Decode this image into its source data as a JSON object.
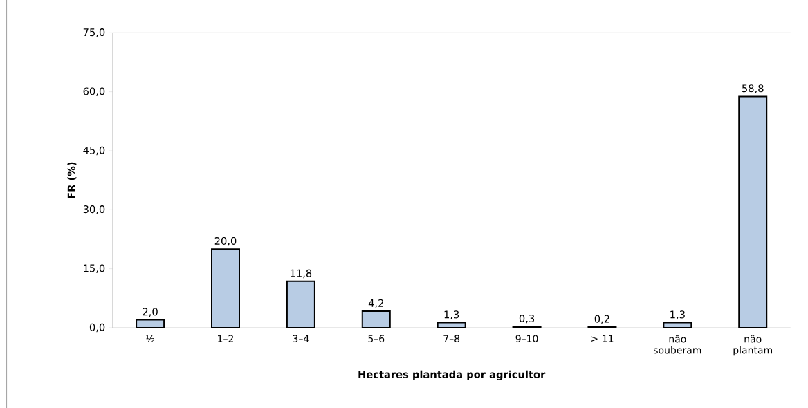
{
  "chart_data": {
    "type": "bar",
    "xlabel": "Hectares plantada por agricultor",
    "ylabel": "FR (%)",
    "categories": [
      "½",
      "1–2",
      "3–4",
      "5–6",
      "7–8",
      "9–10",
      "> 11",
      "não souberam",
      "não plantam"
    ],
    "values": [
      2.0,
      20.0,
      11.8,
      4.2,
      1.3,
      0.3,
      0.2,
      1.3,
      58.8
    ],
    "value_labels": [
      "2,0",
      "20,0",
      "11,8",
      "4,2",
      "1,3",
      "0,3",
      "0,2",
      "1,3",
      "58,8"
    ],
    "color": "#b8cce4",
    "ylim": [
      0,
      75
    ],
    "yticks": [
      {
        "value": 0,
        "label": "0,0"
      },
      {
        "value": 15,
        "label": "15,0"
      },
      {
        "value": 30,
        "label": "30,0"
      },
      {
        "value": 45,
        "label": "45,0"
      },
      {
        "value": 60,
        "label": "60,0"
      },
      {
        "value": 75,
        "label": "75,0"
      }
    ],
    "grid": false
  }
}
